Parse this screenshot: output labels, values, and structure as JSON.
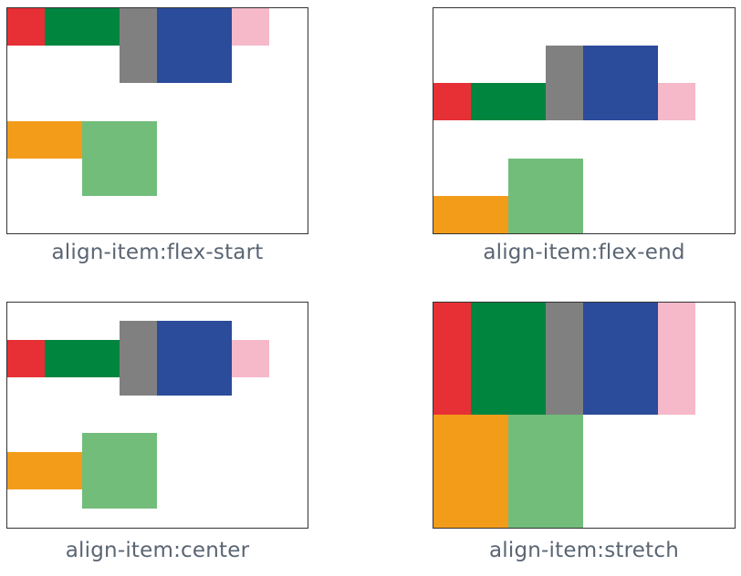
{
  "colors": {
    "red": "#e63036",
    "dark_green": "#00853f",
    "gray": "#808080",
    "blue": "#2b4b9b",
    "pink": "#f5b9c9",
    "orange": "#f39c1a",
    "light_green": "#72bd7a",
    "border": "#333333",
    "caption_text": "#5a6573"
  },
  "panels": [
    {
      "caption": "align-item:flex-start"
    },
    {
      "caption": "align-item:flex-end"
    },
    {
      "caption": "align-item:center"
    },
    {
      "caption": "align-item:stretch"
    }
  ]
}
